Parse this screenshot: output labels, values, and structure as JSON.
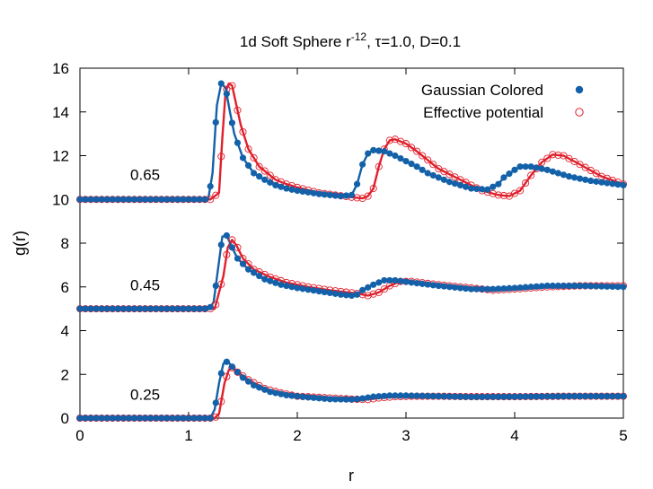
{
  "chart_data": {
    "type": "line",
    "title": {
      "prefix": "1d Soft Sphere r",
      "sup": "-12",
      "suffix": ", τ=1.0, D=0.1"
    },
    "xlabel": "r",
    "ylabel": "g(r)",
    "xlim": [
      0,
      5
    ],
    "ylim": [
      0,
      16
    ],
    "xticks": [
      0,
      1,
      2,
      3,
      4,
      5
    ],
    "yticks": [
      0,
      2,
      4,
      6,
      8,
      10,
      12,
      14,
      16
    ],
    "grid": false,
    "legend_position": "top-right",
    "colors": {
      "gaussian": "#1361a9",
      "effective": "#e0202c"
    },
    "series": [
      {
        "name": "Gaussian Colored",
        "marker": "filled-circle"
      },
      {
        "name": "Effective potential",
        "marker": "open-circle"
      }
    ],
    "annotations": [
      {
        "text": "0.65",
        "x": 0.6,
        "y": 10.9
      },
      {
        "text": "0.45",
        "x": 0.6,
        "y": 5.85
      },
      {
        "text": "0.25",
        "x": 0.6,
        "y": 0.85
      }
    ],
    "curves": [
      {
        "density": "0.65",
        "gaussian": [
          [
            0,
            10
          ],
          [
            1.18,
            10
          ],
          [
            1.22,
            11.2
          ],
          [
            1.26,
            14.3
          ],
          [
            1.3,
            15.3
          ],
          [
            1.34,
            15.1
          ],
          [
            1.38,
            14.0
          ],
          [
            1.42,
            13.0
          ],
          [
            1.5,
            11.9
          ],
          [
            1.6,
            11.2
          ],
          [
            1.7,
            10.9
          ],
          [
            1.8,
            10.65
          ],
          [
            1.9,
            10.5
          ],
          [
            2.0,
            10.4
          ],
          [
            2.2,
            10.25
          ],
          [
            2.4,
            10.15
          ],
          [
            2.5,
            10.2
          ],
          [
            2.55,
            10.7
          ],
          [
            2.6,
            11.6
          ],
          [
            2.65,
            12.1
          ],
          [
            2.7,
            12.25
          ],
          [
            2.8,
            12.2
          ],
          [
            2.9,
            12.0
          ],
          [
            3.0,
            11.75
          ],
          [
            3.1,
            11.5
          ],
          [
            3.2,
            11.2
          ],
          [
            3.4,
            10.8
          ],
          [
            3.6,
            10.5
          ],
          [
            3.75,
            10.45
          ],
          [
            3.85,
            10.7
          ],
          [
            3.9,
            11.0
          ],
          [
            4.0,
            11.35
          ],
          [
            4.05,
            11.5
          ],
          [
            4.15,
            11.5
          ],
          [
            4.3,
            11.35
          ],
          [
            4.5,
            11.05
          ],
          [
            4.7,
            10.85
          ],
          [
            5.0,
            10.65
          ]
        ],
        "effective": [
          [
            0,
            10
          ],
          [
            1.2,
            10
          ],
          [
            1.28,
            10.3
          ],
          [
            1.31,
            12.8
          ],
          [
            1.34,
            14.9
          ],
          [
            1.37,
            15.3
          ],
          [
            1.4,
            15.2
          ],
          [
            1.44,
            14.3
          ],
          [
            1.48,
            13.4
          ],
          [
            1.55,
            12.3
          ],
          [
            1.65,
            11.5
          ],
          [
            1.8,
            10.9
          ],
          [
            1.9,
            10.7
          ],
          [
            2.0,
            10.55
          ],
          [
            2.2,
            10.3
          ],
          [
            2.5,
            10.1
          ],
          [
            2.6,
            10.05
          ],
          [
            2.65,
            10.15
          ],
          [
            2.7,
            10.5
          ],
          [
            2.75,
            11.5
          ],
          [
            2.8,
            12.3
          ],
          [
            2.85,
            12.7
          ],
          [
            2.9,
            12.75
          ],
          [
            3.0,
            12.55
          ],
          [
            3.1,
            12.2
          ],
          [
            3.2,
            11.8
          ],
          [
            3.3,
            11.4
          ],
          [
            3.5,
            10.9
          ],
          [
            3.7,
            10.4
          ],
          [
            3.85,
            10.2
          ],
          [
            3.95,
            10.15
          ],
          [
            4.05,
            10.4
          ],
          [
            4.15,
            11.1
          ],
          [
            4.25,
            11.7
          ],
          [
            4.35,
            12.05
          ],
          [
            4.45,
            12.0
          ],
          [
            4.6,
            11.6
          ],
          [
            4.8,
            11.05
          ],
          [
            5.0,
            10.7
          ]
        ]
      },
      {
        "density": "0.45",
        "gaussian": [
          [
            0,
            5
          ],
          [
            1.19,
            5
          ],
          [
            1.23,
            5.3
          ],
          [
            1.27,
            6.8
          ],
          [
            1.31,
            8.3
          ],
          [
            1.35,
            8.35
          ],
          [
            1.4,
            7.8
          ],
          [
            1.45,
            7.3
          ],
          [
            1.55,
            6.8
          ],
          [
            1.7,
            6.35
          ],
          [
            1.85,
            6.1
          ],
          [
            2.0,
            5.95
          ],
          [
            2.2,
            5.8
          ],
          [
            2.4,
            5.65
          ],
          [
            2.5,
            5.6
          ],
          [
            2.55,
            5.65
          ],
          [
            2.6,
            5.85
          ],
          [
            2.7,
            6.1
          ],
          [
            2.8,
            6.3
          ],
          [
            2.9,
            6.3
          ],
          [
            3.05,
            6.2
          ],
          [
            3.3,
            6.05
          ],
          [
            3.6,
            5.9
          ],
          [
            3.8,
            5.9
          ],
          [
            4.0,
            5.95
          ],
          [
            4.3,
            6.05
          ],
          [
            4.6,
            6.05
          ],
          [
            5.0,
            6.0
          ]
        ],
        "effective": [
          [
            0,
            5
          ],
          [
            1.24,
            5
          ],
          [
            1.32,
            6.5
          ],
          [
            1.36,
            7.8
          ],
          [
            1.4,
            8.15
          ],
          [
            1.44,
            7.9
          ],
          [
            1.5,
            7.3
          ],
          [
            1.6,
            6.8
          ],
          [
            1.75,
            6.45
          ],
          [
            1.9,
            6.2
          ],
          [
            2.1,
            6.0
          ],
          [
            2.3,
            5.85
          ],
          [
            2.55,
            5.7
          ],
          [
            2.65,
            5.6
          ],
          [
            2.75,
            5.75
          ],
          [
            2.85,
            6.05
          ],
          [
            2.95,
            6.25
          ],
          [
            3.05,
            6.25
          ],
          [
            3.3,
            6.1
          ],
          [
            3.6,
            5.95
          ],
          [
            3.8,
            5.85
          ],
          [
            4.0,
            5.9
          ],
          [
            4.3,
            6.0
          ],
          [
            4.6,
            6.05
          ],
          [
            5.0,
            6.05
          ]
        ]
      },
      {
        "density": "0.25",
        "gaussian": [
          [
            0,
            0
          ],
          [
            1.2,
            0
          ],
          [
            1.24,
            0.4
          ],
          [
            1.28,
            1.6
          ],
          [
            1.32,
            2.5
          ],
          [
            1.36,
            2.6
          ],
          [
            1.4,
            2.35
          ],
          [
            1.5,
            1.85
          ],
          [
            1.6,
            1.5
          ],
          [
            1.75,
            1.2
          ],
          [
            1.9,
            1.05
          ],
          [
            2.1,
            0.95
          ],
          [
            2.3,
            0.87
          ],
          [
            2.5,
            0.85
          ],
          [
            2.6,
            0.9
          ],
          [
            2.7,
            0.98
          ],
          [
            2.85,
            1.03
          ],
          [
            3.0,
            1.03
          ],
          [
            3.3,
            1.0
          ],
          [
            3.6,
            0.97
          ],
          [
            4.0,
            0.98
          ],
          [
            4.5,
            1.0
          ],
          [
            5.0,
            1.0
          ]
        ],
        "effective": [
          [
            0,
            0
          ],
          [
            1.24,
            0
          ],
          [
            1.28,
            0.2
          ],
          [
            1.33,
            1.6
          ],
          [
            1.37,
            2.2
          ],
          [
            1.4,
            2.3
          ],
          [
            1.45,
            2.1
          ],
          [
            1.55,
            1.75
          ],
          [
            1.7,
            1.35
          ],
          [
            1.85,
            1.15
          ],
          [
            2.0,
            1.0
          ],
          [
            2.2,
            0.95
          ],
          [
            2.5,
            0.87
          ],
          [
            2.65,
            0.85
          ],
          [
            2.75,
            0.92
          ],
          [
            2.9,
            0.98
          ],
          [
            3.05,
            1.0
          ],
          [
            3.3,
            1.0
          ],
          [
            3.6,
            0.98
          ],
          [
            4.0,
            0.98
          ],
          [
            4.5,
            1.0
          ],
          [
            5.0,
            1.0
          ]
        ]
      }
    ]
  }
}
